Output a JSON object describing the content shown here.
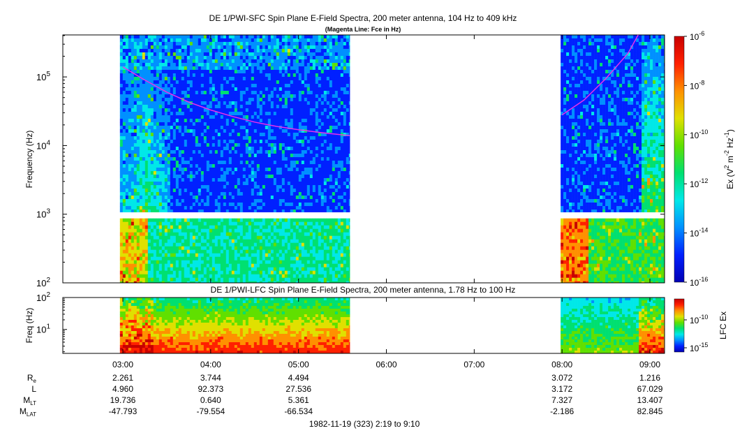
{
  "colors": {
    "background": "#ffffff",
    "magenta_line": "#e832e8",
    "colormap": [
      "#0000b4",
      "#0020ff",
      "#0090ff",
      "#00e8e8",
      "#00e070",
      "#60e000",
      "#e0e000",
      "#ff9000",
      "#ff2000",
      "#c80000"
    ]
  },
  "chart_data": [
    {
      "type": "heatmap",
      "title": "DE 1/PWI-SFC  Spin Plane E-Field Spectra, 200 meter antenna, 104 Hz to 409 kHz",
      "subtitle": "(Magenta Line: Fce in Hz)",
      "ylabel": "Frequency (Hz)",
      "yscale": "log",
      "ylim": [
        100,
        409000
      ],
      "y_ticks": [
        {
          "value": 100,
          "base": "10",
          "exp": "2"
        },
        {
          "value": 1000,
          "base": "10",
          "exp": "3"
        },
        {
          "value": 10000,
          "base": "10",
          "exp": "4"
        },
        {
          "value": 100000,
          "base": "10",
          "exp": "5"
        }
      ],
      "colorbar": {
        "label_parts": [
          "Ex (V",
          "2",
          " m",
          "-2",
          " Hz",
          "-1",
          ")"
        ],
        "scale": "log",
        "range": [
          1e-16,
          1e-06
        ],
        "ticks": [
          {
            "value": 1e-06,
            "base": "10",
            "exp": "-6"
          },
          {
            "value": 1e-08,
            "base": "10",
            "exp": "-8"
          },
          {
            "value": 1e-10,
            "base": "10",
            "exp": "-10"
          },
          {
            "value": 1e-12,
            "base": "10",
            "exp": "-12"
          },
          {
            "value": 1e-14,
            "base": "10",
            "exp": "-14"
          },
          {
            "value": 1e-16,
            "base": "10",
            "exp": "-16"
          }
        ]
      },
      "data_intervals": [
        "2:58",
        "5:35",
        "7:59",
        "9:10"
      ],
      "series": [
        {
          "name": "Fce",
          "x": [
            "3:00",
            "3:15",
            "3:30",
            "3:45",
            "4:00",
            "4:15",
            "4:30",
            "4:45",
            "5:00",
            "5:15",
            "5:30",
            "5:35"
          ],
          "y": [
            140000,
            90000,
            60000,
            43000,
            33000,
            26500,
            22000,
            19000,
            17000,
            15500,
            14300,
            14000
          ]
        },
        {
          "name": "Fce",
          "x": [
            "8:00",
            "8:15",
            "8:30",
            "8:45",
            "8:52"
          ],
          "y": [
            28000,
            46000,
            95000,
            220000,
            409000
          ]
        }
      ]
    },
    {
      "type": "heatmap",
      "title": "DE 1/PWI-LFC  Spin Plane E-Field Spectra, 200 meter antenna, 1.78 Hz to 100 Hz",
      "ylabel": "Freq (Hz)",
      "yscale": "log",
      "ylim": [
        1.78,
        100
      ],
      "y_ticks": [
        {
          "value": 10,
          "base": "10",
          "exp": "1"
        },
        {
          "value": 100,
          "base": "10",
          "exp": "2"
        }
      ],
      "colorbar": {
        "label": "LFC Ex",
        "scale": "log",
        "ticks": [
          {
            "value": 1e-10,
            "base": "10",
            "exp": "-10"
          },
          {
            "value": 1e-15,
            "base": "10",
            "exp": "-15"
          }
        ]
      },
      "data_intervals": [
        "2:58",
        "5:35",
        "7:59",
        "9:10"
      ]
    }
  ],
  "x_axis": {
    "range": [
      "2:19",
      "9:10"
    ],
    "ticks": [
      "03:00",
      "04:00",
      "05:00",
      "06:00",
      "07:00",
      "08:00",
      "09:00"
    ]
  },
  "ephemeris": {
    "labels": [
      {
        "main": "R",
        "sub": "e"
      },
      {
        "main": "L",
        "sub": ""
      },
      {
        "main": "M",
        "sub": "LT"
      },
      {
        "main": "M",
        "sub": "LAT"
      }
    ],
    "columns": [
      {
        "time": "03:00",
        "values": [
          "2.261",
          "4.960",
          "19.736",
          "-47.793"
        ]
      },
      {
        "time": "04:00",
        "values": [
          "3.744",
          "92.373",
          "0.640",
          "-79.554"
        ]
      },
      {
        "time": "05:00",
        "values": [
          "4.494",
          "27.536",
          "5.361",
          "-66.534"
        ]
      },
      {
        "time": "08:00",
        "values": [
          "3.072",
          "3.172",
          "7.327",
          "-2.186"
        ]
      },
      {
        "time": "09:00",
        "values": [
          "1.216",
          "67.029",
          "13.407",
          "82.845"
        ]
      }
    ]
  },
  "footer": "1982-11-19 (323) 2:19 to 9:10"
}
